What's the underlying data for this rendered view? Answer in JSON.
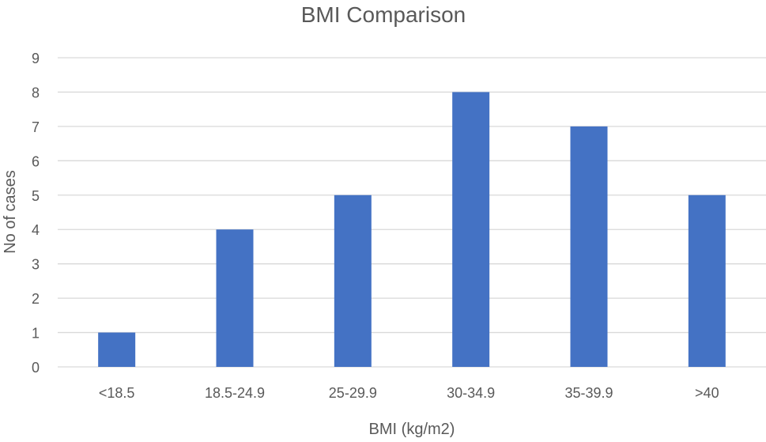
{
  "chart_data": {
    "type": "bar",
    "title": "BMI Comparison",
    "xlabel": "BMI (kg/m2)",
    "ylabel": "No of cases",
    "categories": [
      "<18.5",
      "18.5-24.9",
      "25-29.9",
      "30-34.9",
      "35-39.9",
      ">40"
    ],
    "values": [
      1,
      4,
      5,
      8,
      7,
      5
    ],
    "ylim": [
      0,
      9
    ],
    "yticks": [
      0,
      1,
      2,
      3,
      4,
      5,
      6,
      7,
      8,
      9
    ],
    "grid": true,
    "legend": "none",
    "colors": {
      "bar": "#4472C4",
      "grid": "#D9D9D9",
      "text": "#595959"
    }
  }
}
